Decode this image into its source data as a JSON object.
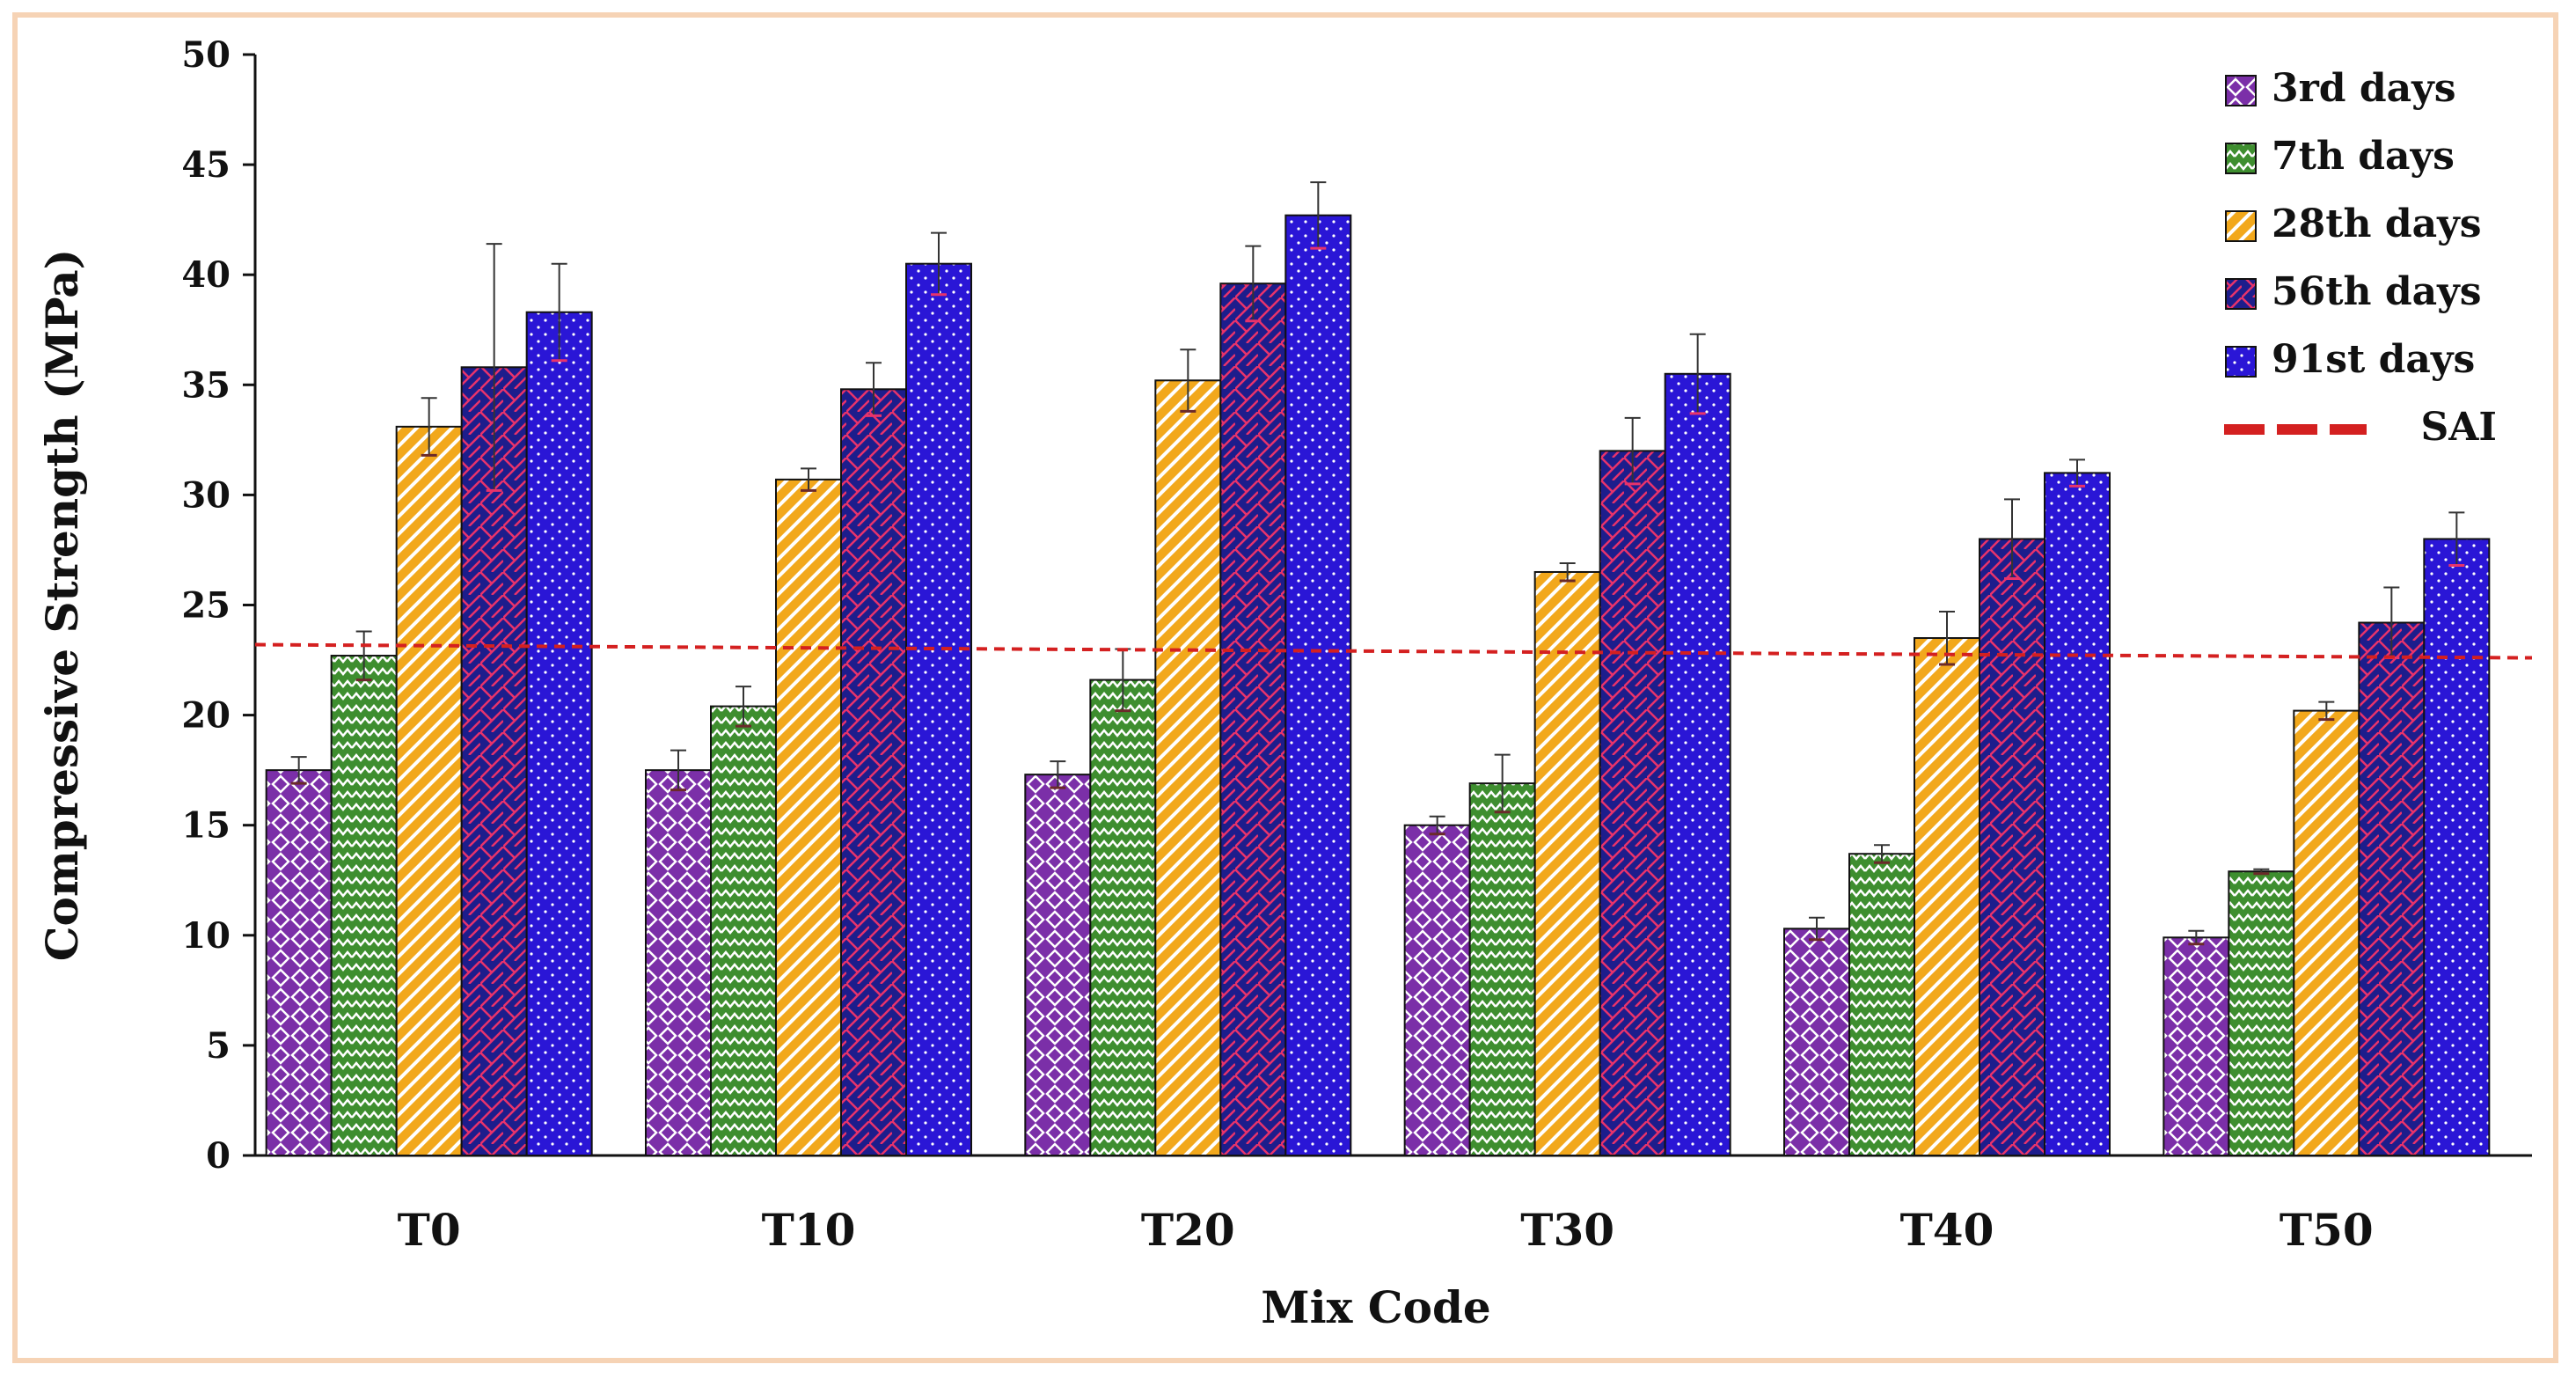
{
  "chart_data": {
    "type": "bar",
    "title": "",
    "xlabel": "Mix Code",
    "ylabel": "Compressive Strength (MPa)",
    "ylim": [
      0,
      50
    ],
    "yticks": [
      0,
      5,
      10,
      15,
      20,
      25,
      30,
      35,
      40,
      45,
      50
    ],
    "grid": false,
    "legend_position": "top-right",
    "categories": [
      "T0",
      "T10",
      "T20",
      "T30",
      "T40",
      "T50"
    ],
    "series": [
      {
        "name": "3rd days",
        "color": "#7b2fa8",
        "pattern": "diamond",
        "values": [
          17.5,
          17.5,
          17.3,
          15.0,
          10.3,
          9.9
        ],
        "errors": [
          0.6,
          0.9,
          0.6,
          0.4,
          0.5,
          0.3
        ]
      },
      {
        "name": "7th days",
        "color": "#3e8e2f",
        "pattern": "zigzag",
        "values": [
          22.7,
          20.4,
          21.6,
          16.9,
          13.7,
          12.9
        ],
        "errors": [
          1.1,
          0.9,
          1.4,
          1.3,
          0.4,
          0.1
        ]
      },
      {
        "name": "28th days",
        "color": "#f2a81c",
        "pattern": "diagonal",
        "values": [
          33.1,
          30.7,
          35.2,
          26.5,
          23.5,
          20.2
        ],
        "errors": [
          1.3,
          0.5,
          1.4,
          0.4,
          1.2,
          0.4
        ]
      },
      {
        "name": "56th days",
        "color": "#1d1d8c",
        "pattern": "brick",
        "values": [
          35.8,
          34.8,
          39.6,
          32.0,
          28.0,
          24.2
        ],
        "errors": [
          5.6,
          1.2,
          1.7,
          1.5,
          1.8,
          1.6
        ]
      },
      {
        "name": "91st days",
        "color": "#2a16d6",
        "pattern": "dots",
        "values": [
          38.3,
          40.5,
          42.7,
          35.5,
          31.0,
          28.0
        ],
        "errors": [
          2.2,
          1.4,
          1.5,
          1.8,
          0.6,
          1.2
        ]
      }
    ],
    "reference_line": {
      "name": "SAI",
      "color": "#d42020",
      "start_value": 23.2,
      "end_value": 22.6
    }
  }
}
